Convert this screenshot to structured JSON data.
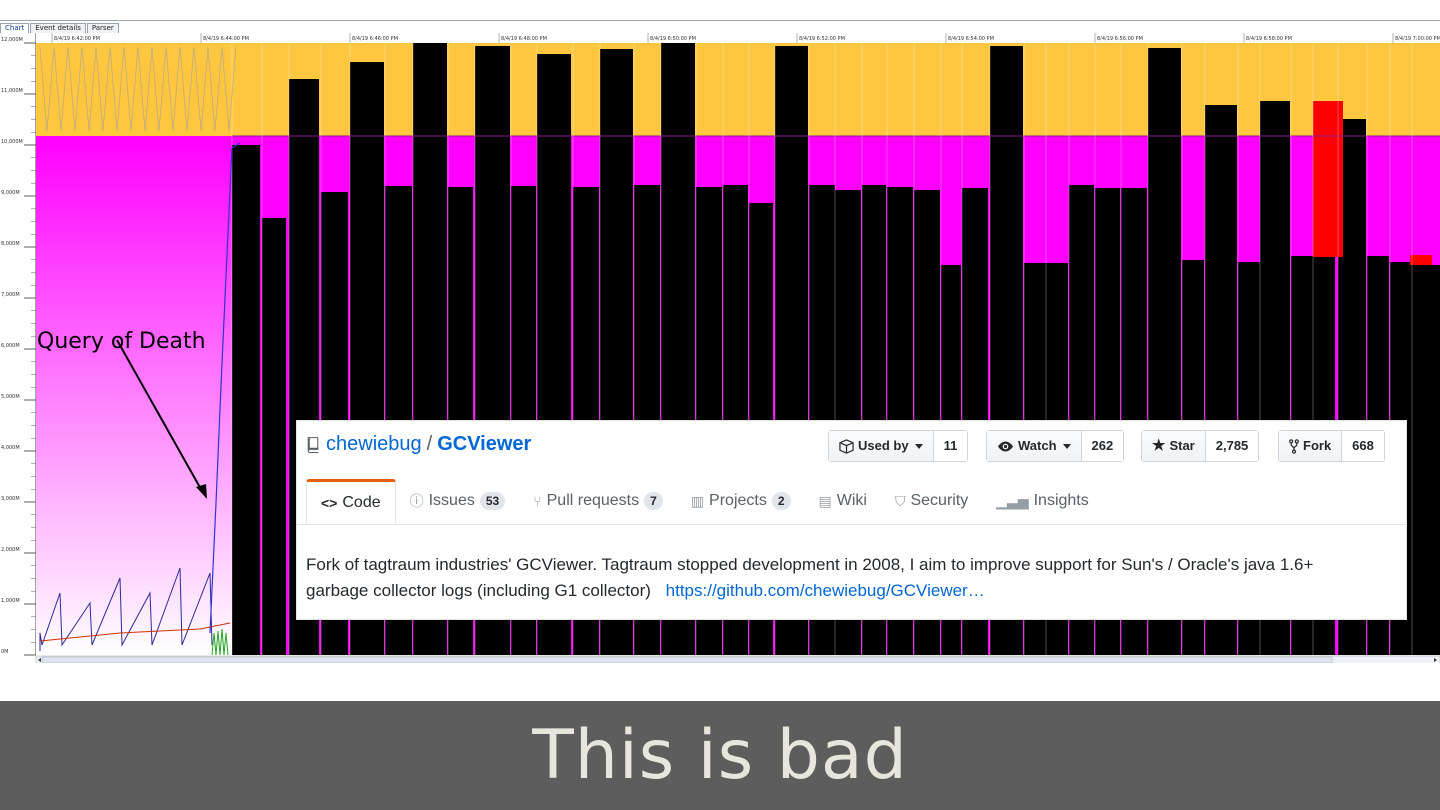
{
  "gcviewer": {
    "tabs": [
      {
        "label": "Chart",
        "active": true
      },
      {
        "label": "Event details",
        "active": false
      },
      {
        "label": "Parser",
        "active": false
      }
    ],
    "time_labels": [
      "8/4/19 6:42:00 PM",
      "8/4/19 6:44:00 PM",
      "8/4/19 6:46:00 PM",
      "8/4/19 6:48:00 PM",
      "8/4/19 6:50:00 PM",
      "8/4/19 6:52:00 PM",
      "8/4/19 6:54:00 PM",
      "8/4/19 6:56:00 PM",
      "8/4/19 6:58:00 PM",
      "8/4/19 7:00:00 PM"
    ],
    "y_axis_labels": [
      "12,000M",
      "11,000M",
      "10,000M",
      "9,000M",
      "8,000M",
      "7,000M",
      "6,000M",
      "5,000M",
      "4,000M",
      "3,000M",
      "2,000M",
      "1,000M",
      "0M"
    ],
    "annotation": "Query of Death",
    "colors": {
      "heap_total": "#ffc640",
      "young_used": "#ff00ff",
      "used_heap": "#000000",
      "full_gc": "#ff0000"
    }
  },
  "repo": {
    "owner": "chewiebug",
    "separator": "/",
    "name": "GCViewer",
    "repo_icon": "repo-book-icon",
    "actions": [
      {
        "label": "Used by",
        "count": "11",
        "icon": "package-icon",
        "dropdown": true
      },
      {
        "label": "Watch",
        "count": "262",
        "icon": "eye-icon",
        "dropdown": true
      },
      {
        "label": "Star",
        "count": "2,785",
        "icon": "star-icon",
        "dropdown": false
      },
      {
        "label": "Fork",
        "count": "668",
        "icon": "fork-icon",
        "dropdown": false
      }
    ],
    "nav_tabs": [
      {
        "label": "Code",
        "icon": "code-icon",
        "counter": "",
        "selected": true
      },
      {
        "label": "Issues",
        "icon": "issue-icon",
        "counter": "53",
        "selected": false
      },
      {
        "label": "Pull requests",
        "icon": "pull-request-icon",
        "counter": "7",
        "selected": false
      },
      {
        "label": "Projects",
        "icon": "project-icon",
        "counter": "2",
        "selected": false
      },
      {
        "label": "Wiki",
        "icon": "book-icon",
        "counter": "",
        "selected": false
      },
      {
        "label": "Security",
        "icon": "shield-icon",
        "counter": "",
        "selected": false
      },
      {
        "label": "Insights",
        "icon": "graph-icon",
        "counter": "",
        "selected": false
      }
    ],
    "description": "Fork of tagtraum industries' GCViewer. Tagtraum stopped development in 2008, I aim to improve support for Sun's / Oracle's java 1.6+ garbage collector logs (including G1 collector)",
    "link": "https://github.com/chewiebug/GCViewer…",
    "colors": {
      "link": "#0366d6",
      "selected_tab": "#e36209"
    }
  },
  "caption": "This is bad"
}
